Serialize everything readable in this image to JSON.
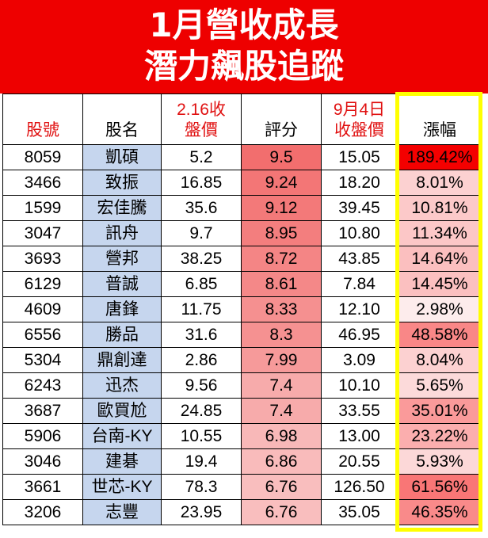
{
  "title_line1": "1月營收成長",
  "title_line2": "潛力飆股追蹤",
  "headers": {
    "code": "股號",
    "name": "股名",
    "price1_a": "2.16收",
    "price1_b": "盤價",
    "score": "評分",
    "price2_a": "9月4日",
    "price2_b": "收盤價",
    "change": "漲幅"
  },
  "colors": {
    "banner": "#ee0000",
    "header_red_text": "#e01010",
    "name_cell": "#c6d6ee",
    "highlight_border": "#ffff00",
    "score_scale_max": "#f26b6b",
    "change_scale_max": "#f40000"
  },
  "rows": [
    {
      "code": "8059",
      "name": "凱碩",
      "price1": "5.2",
      "score": "9.5",
      "price2": "15.05",
      "change": "189.42%",
      "change_value": 189.42
    },
    {
      "code": "3466",
      "name": "致振",
      "price1": "16.85",
      "score": "9.24",
      "price2": "18.20",
      "change": "8.01%",
      "change_value": 8.01
    },
    {
      "code": "1599",
      "name": "宏佳騰",
      "price1": "35.6",
      "score": "9.12",
      "price2": "39.45",
      "change": "10.81%",
      "change_value": 10.81
    },
    {
      "code": "3047",
      "name": "訊舟",
      "price1": "9.7",
      "score": "8.95",
      "price2": "10.80",
      "change": "11.34%",
      "change_value": 11.34
    },
    {
      "code": "3693",
      "name": "營邦",
      "price1": "38.25",
      "score": "8.72",
      "price2": "43.85",
      "change": "14.64%",
      "change_value": 14.64
    },
    {
      "code": "6129",
      "name": "普誠",
      "price1": "6.85",
      "score": "8.61",
      "price2": "7.84",
      "change": "14.45%",
      "change_value": 14.45
    },
    {
      "code": "4609",
      "name": "唐鋒",
      "price1": "11.75",
      "score": "8.33",
      "price2": "12.10",
      "change": "2.98%",
      "change_value": 2.98
    },
    {
      "code": "6556",
      "name": "勝品",
      "price1": "31.6",
      "score": "8.3",
      "price2": "46.95",
      "change": "48.58%",
      "change_value": 48.58
    },
    {
      "code": "5304",
      "name": "鼎創達",
      "price1": "2.86",
      "score": "7.99",
      "price2": "3.09",
      "change": "8.04%",
      "change_value": 8.04
    },
    {
      "code": "6243",
      "name": "迅杰",
      "price1": "9.56",
      "score": "7.4",
      "price2": "10.10",
      "change": "5.65%",
      "change_value": 5.65
    },
    {
      "code": "3687",
      "name": "歐買尬",
      "price1": "24.85",
      "score": "7.4",
      "price2": "33.55",
      "change": "35.01%",
      "change_value": 35.01
    },
    {
      "code": "5906",
      "name": "台南-KY",
      "price1": "10.55",
      "score": "6.98",
      "price2": "13.00",
      "change": "23.22%",
      "change_value": 23.22
    },
    {
      "code": "3046",
      "name": "建碁",
      "price1": "19.4",
      "score": "6.86",
      "price2": "20.55",
      "change": "5.93%",
      "change_value": 5.93
    },
    {
      "code": "3661",
      "name": "世芯-KY",
      "price1": "78.3",
      "score": "6.76",
      "price2": "126.50",
      "change": "61.56%",
      "change_value": 61.56
    },
    {
      "code": "3206",
      "name": "志豐",
      "price1": "23.95",
      "score": "6.76",
      "price2": "35.05",
      "change": "46.35%",
      "change_value": 46.35
    }
  ]
}
